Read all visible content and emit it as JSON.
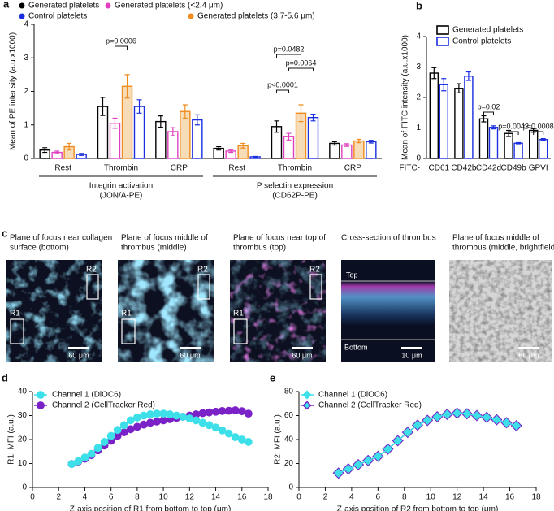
{
  "chart_data": [
    {
      "type": "bar",
      "panel": "a",
      "ylabel": "Mean of PE intensity (a.u.x1000)",
      "ylim": [
        0,
        4
      ],
      "yticks": [
        0,
        1,
        2,
        3,
        4
      ],
      "categories": [
        "Rest",
        "Thrombin",
        "CRP",
        "Rest",
        "Thrombin",
        "CRP"
      ],
      "groups": [
        {
          "label": [
            "Integrin activation",
            "(JON/A-PE)"
          ]
        },
        {
          "label": [
            "P selectin expression",
            "(CD62P-PE)"
          ]
        }
      ],
      "series": [
        {
          "name": "Generated platelets",
          "color": "#000000",
          "fill": "#ffffff",
          "values": [
            0.25,
            1.55,
            1.1,
            0.3,
            0.95,
            0.45
          ],
          "errors": [
            0.07,
            0.27,
            0.17,
            0.05,
            0.17,
            0.05
          ]
        },
        {
          "name": "Generated platelets (<2.4 μm)",
          "color": "#e040c0",
          "fill": "#ffffff",
          "values": [
            0.18,
            1.05,
            0.8,
            0.22,
            0.65,
            0.4
          ],
          "errors": [
            0.04,
            0.15,
            0.12,
            0.04,
            0.1,
            0.04
          ]
        },
        {
          "name": "Generated platelets (3.7-5.6 μm)",
          "color": "#f08c1e",
          "fill": "#f7dcb8",
          "values": [
            0.35,
            2.15,
            1.4,
            0.38,
            1.35,
            0.52
          ],
          "errors": [
            0.1,
            0.35,
            0.2,
            0.07,
            0.25,
            0.05
          ]
        },
        {
          "name": "Control platelets",
          "color": "#1a2ee0",
          "fill": "#ffffff",
          "values": [
            0.12,
            1.55,
            1.15,
            0.05,
            1.22,
            0.5
          ],
          "errors": [
            0.03,
            0.2,
            0.15,
            0.01,
            0.1,
            0.04
          ]
        }
      ],
      "annotations": [
        "p=0.0006",
        "p=0.0482",
        "p=0.0064",
        "p<0.0001"
      ]
    },
    {
      "type": "bar",
      "panel": "b",
      "ylabel": "Mean of FITC intensity (a.u.x1000)",
      "xlabel": "FITC-",
      "ylim": [
        0,
        4
      ],
      "yticks": [
        0,
        1,
        2,
        3,
        4
      ],
      "categories": [
        "CD61",
        "CD42b",
        "CD42d",
        "CD49b",
        "GPVI"
      ],
      "series": [
        {
          "name": "Generated platelets",
          "color": "#000000",
          "fill": "#ffffff",
          "values": [
            2.8,
            2.3,
            1.3,
            0.82,
            0.92
          ],
          "errors": [
            0.18,
            0.15,
            0.1,
            0.1,
            0.06
          ]
        },
        {
          "name": "Control platelets",
          "color": "#1a2ee0",
          "fill": "#ffffff",
          "values": [
            2.42,
            2.7,
            1.02,
            0.5,
            0.62
          ],
          "errors": [
            0.2,
            0.14,
            0.05,
            0.02,
            0.03
          ]
        }
      ],
      "annotations": [
        "p=0.02",
        "p=0.0043",
        "p=0.0008"
      ]
    },
    {
      "type": "line",
      "panel": "d",
      "marker": "circle",
      "xlabel": "Z-axis position of R1 from bottom to top (μm)",
      "ylabel": "R1: MFI (a.u.)",
      "xlim": [
        0,
        18
      ],
      "xticks": [
        0,
        2,
        4,
        6,
        8,
        10,
        12,
        14,
        16,
        18
      ],
      "ylim": [
        0,
        40
      ],
      "yticks": [
        0,
        10,
        20,
        30,
        40
      ],
      "x": [
        3,
        3.5,
        4,
        4.5,
        5,
        5.5,
        6,
        6.5,
        7,
        7.5,
        8,
        8.5,
        9,
        9.5,
        10,
        10.5,
        11,
        11.5,
        12,
        12.5,
        13,
        13.5,
        14,
        14.5,
        15,
        15.5,
        16,
        16.5
      ],
      "series": [
        {
          "name": "Channel 1 (DiOC6)",
          "color": "#3de0e8",
          "values": [
            9.8,
            11,
            12.5,
            14,
            16.5,
            19,
            21.5,
            24,
            26,
            28,
            29.2,
            30,
            30.5,
            30.8,
            30.8,
            30.5,
            30,
            29.5,
            28.8,
            28,
            27,
            26,
            25,
            23.8,
            22.5,
            21,
            20,
            19
          ]
        },
        {
          "name": "Channel 2 (CellTracker Red)",
          "color": "#7a22c8",
          "values": [
            9.8,
            10.8,
            12,
            13.5,
            15.5,
            17.5,
            19.5,
            21.5,
            23,
            24.3,
            25.3,
            26.2,
            27,
            27.5,
            28,
            28.5,
            29,
            29.5,
            30,
            30.5,
            31,
            31.3,
            31.6,
            31.9,
            32,
            32.2,
            31.8,
            30.8
          ]
        }
      ]
    },
    {
      "type": "line",
      "panel": "e",
      "marker": "diamond",
      "xlabel": "Z-axis position of R2 from bottom to top (μm)",
      "ylabel": "R2: MFI (a.u.)",
      "xlim": [
        0,
        18
      ],
      "xticks": [
        0,
        2,
        4,
        6,
        8,
        10,
        12,
        14,
        16,
        18
      ],
      "ylim": [
        0,
        80
      ],
      "yticks": [
        0,
        20,
        40,
        60,
        80
      ],
      "x": [
        3,
        3.75,
        4.5,
        5.25,
        6,
        6.75,
        7.5,
        8.25,
        9,
        9.75,
        10.5,
        11.25,
        12,
        12.75,
        13.5,
        14.25,
        15,
        15.75,
        16.5
      ],
      "series": [
        {
          "name": "Channel 1 (DiOC6)",
          "color": "#3de0e8",
          "values": [
            12,
            15.5,
            19,
            22.5,
            26,
            32,
            39,
            46,
            52,
            56,
            59,
            61,
            62,
            61.5,
            60,
            58.5,
            56.5,
            54,
            51.5
          ]
        },
        {
          "name": "Channel 2 (CellTracker Red)",
          "color": "#7a22c8",
          "values": [
            12,
            15.5,
            19,
            22.5,
            26,
            32,
            39,
            46,
            52,
            56,
            59,
            61,
            62,
            61.5,
            60,
            58.5,
            56.5,
            54,
            51.5
          ]
        }
      ]
    }
  ],
  "images": {
    "panel": "c",
    "panels": [
      {
        "caption": [
          "Plane of focus near collagen",
          "surface (bottom)"
        ],
        "labels": [
          "R1",
          "R2"
        ],
        "scale": "60 μm"
      },
      {
        "caption": [
          "Plane of focus middle of",
          "thrombus (middle)"
        ],
        "labels": [
          "R1",
          "R2"
        ],
        "scale": "60 μm"
      },
      {
        "caption": [
          "Plane of focus near top of",
          "thrombus (top)"
        ],
        "labels": [
          "R1",
          "R2"
        ],
        "scale": "60 μm"
      },
      {
        "caption": [
          "Cross-section of  thrombus"
        ],
        "labels": [
          "Top",
          "Bottom"
        ],
        "scale": "10 μm"
      },
      {
        "caption": [
          "Plane of focus middle of",
          "thrombus (middle, brightfield)"
        ],
        "labels": [],
        "scale": "60 μm"
      }
    ]
  }
}
